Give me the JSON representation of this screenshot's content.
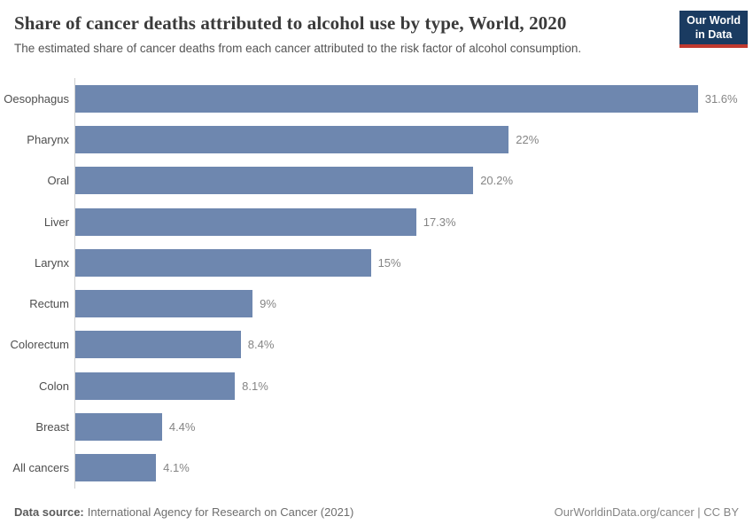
{
  "header": {
    "title": "Share of cancer deaths attributed to alcohol use by type, World, 2020",
    "subtitle": "The estimated share of cancer deaths from each cancer attributed to the risk factor of alcohol consumption.",
    "logo": {
      "line1": "Our World",
      "line2": "in Data"
    }
  },
  "chart_data": {
    "type": "bar",
    "orientation": "horizontal",
    "title": "Share of cancer deaths attributed to alcohol use by type, World, 2020",
    "categories": [
      "Oesophagus",
      "Pharynx",
      "Oral",
      "Liver",
      "Larynx",
      "Rectum",
      "Colorectum",
      "Colon",
      "Breast",
      "All cancers"
    ],
    "values": [
      31.6,
      22,
      20.2,
      17.3,
      15,
      9,
      8.4,
      8.1,
      4.4,
      4.1
    ],
    "value_labels": [
      "31.6%",
      "22%",
      "20.2%",
      "17.3%",
      "15%",
      "9%",
      "8.4%",
      "8.1%",
      "4.4%",
      "4.1%"
    ],
    "xlabel": "",
    "ylabel": "",
    "xlim": [
      0,
      34.4
    ],
    "grid": false,
    "legend": false,
    "bar_color": "#6e87af"
  },
  "footer": {
    "source_label": "Data source:",
    "source_text": "International Agency for Research on Cancer (2021)",
    "link_text": "OurWorldinData.org/cancer | CC BY"
  },
  "colors": {
    "bar": "#6e87af",
    "logo_background": "#1a3b61",
    "logo_underline": "#c0392f",
    "axis_line": "#cfcfcf",
    "title_text": "#3a3a3a",
    "subtitle_text": "#555555",
    "value_label_text": "#858585"
  }
}
